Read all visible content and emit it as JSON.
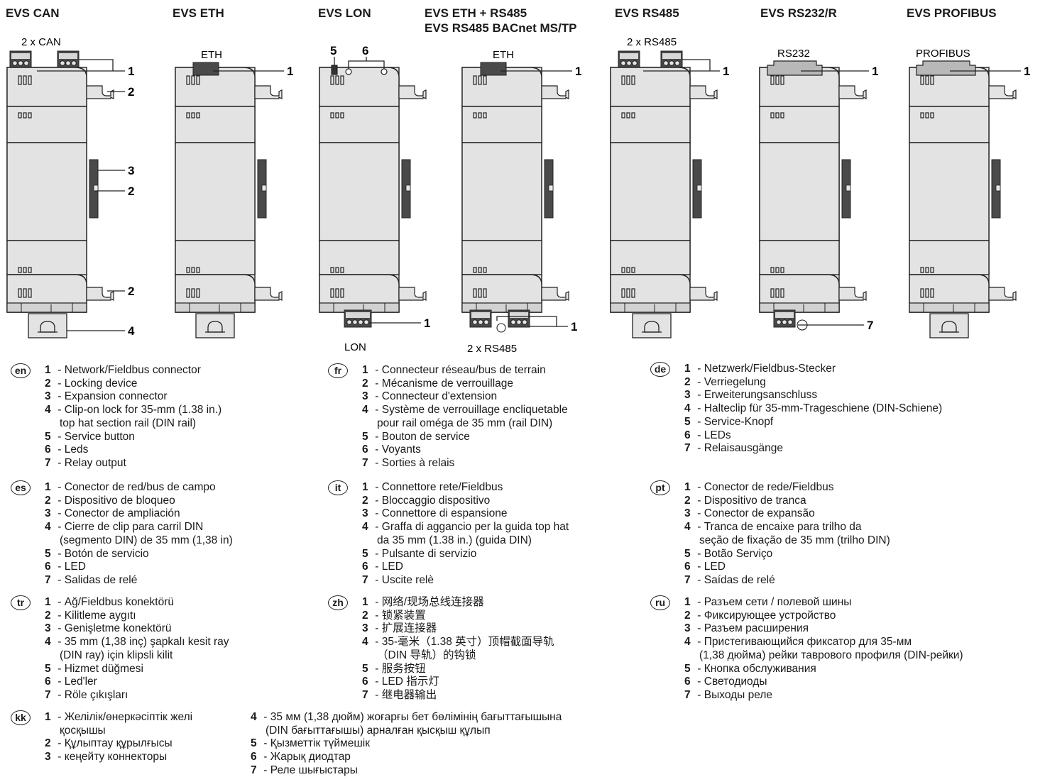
{
  "modules": [
    {
      "title": "EVS CAN",
      "port_label": "2 x CAN",
      "bottom_label": ""
    },
    {
      "title": "EVS ETH",
      "port_label": "ETH",
      "bottom_label": ""
    },
    {
      "title": "EVS LON",
      "port_label": "",
      "bottom_label": "LON"
    },
    {
      "title": "EVS ETH + RS485",
      "title2": "EVS RS485 BACnet MS/TP",
      "port_label": "ETH",
      "bottom_label": "2 x RS485"
    },
    {
      "title": "EVS RS485",
      "port_label": "2 x RS485",
      "bottom_label": ""
    },
    {
      "title": "EVS RS232/R",
      "port_label": "RS232",
      "bottom_label": ""
    },
    {
      "title": "EVS PROFIBUS",
      "port_label": "PROFIBUS",
      "bottom_label": ""
    }
  ],
  "callouts": {
    "can": [
      "1",
      "2",
      "3",
      "2",
      "2",
      "4"
    ],
    "eth": [
      "1"
    ],
    "lon": [
      "5",
      "6",
      "1"
    ],
    "ethrs485": [
      "1",
      "1"
    ],
    "rs485": [
      "1"
    ],
    "rs232": [
      "1",
      "7"
    ],
    "profibus": [
      "1"
    ]
  },
  "legends": {
    "en": {
      "lang": "en",
      "items": [
        {
          "n": "1",
          "t": "Network/Fieldbus connector"
        },
        {
          "n": "2",
          "t": "Locking device"
        },
        {
          "n": "3",
          "t": "Expansion connector"
        },
        {
          "n": "4",
          "t": "Clip-on lock for 35-mm (1.38 in.)",
          "t2": "top hat section rail (DIN rail)"
        },
        {
          "n": "5",
          "t": "Service button"
        },
        {
          "n": "6",
          "t": "Leds"
        },
        {
          "n": "7",
          "t": "Relay output"
        }
      ]
    },
    "fr": {
      "lang": "fr",
      "items": [
        {
          "n": "1",
          "t": "Connecteur réseau/bus de terrain"
        },
        {
          "n": "2",
          "t": "Mécanisme de verrouillage"
        },
        {
          "n": "3",
          "t": "Connecteur d'extension"
        },
        {
          "n": "4",
          "t": "Système de verrouillage encliquetable",
          "t2": "pour rail oméga de 35 mm (rail DIN)"
        },
        {
          "n": "5",
          "t": "Bouton de service"
        },
        {
          "n": "6",
          "t": "Voyants"
        },
        {
          "n": "7",
          "t": "Sorties à relais"
        }
      ]
    },
    "de": {
      "lang": "de",
      "items": [
        {
          "n": "1",
          "t": "Netzwerk/Fieldbus-Stecker"
        },
        {
          "n": "2",
          "t": "Verriegelung"
        },
        {
          "n": "3",
          "t": "Erweiterungsanschluss"
        },
        {
          "n": "4",
          "t": "Halteclip für 35-mm-Trageschiene (DIN-Schiene)"
        },
        {
          "n": "5",
          "t": "Service-Knopf"
        },
        {
          "n": "6",
          "t": "LEDs"
        },
        {
          "n": "7",
          "t": "Relaisausgänge"
        }
      ]
    },
    "es": {
      "lang": "es",
      "items": [
        {
          "n": "1",
          "t": "Conector de red/bus de campo"
        },
        {
          "n": "2",
          "t": "Dispositivo de bloqueo"
        },
        {
          "n": "3",
          "t": "Conector de ampliación"
        },
        {
          "n": "4",
          "t": "Cierre de clip para carril DIN",
          "t2": "(segmento DIN) de 35 mm (1,38 in)"
        },
        {
          "n": "5",
          "t": "Botón de servicio"
        },
        {
          "n": "6",
          "t": "LED"
        },
        {
          "n": "7",
          "t": "Salidas de relé"
        }
      ]
    },
    "it": {
      "lang": "it",
      "items": [
        {
          "n": "1",
          "t": "Connettore rete/Fieldbus"
        },
        {
          "n": "2",
          "t": "Bloccaggio dispositivo"
        },
        {
          "n": "3",
          "t": "Connettore di espansione"
        },
        {
          "n": "4",
          "t": "Graffa di aggancio per la guida top hat",
          "t2": "da 35 mm (1.38 in.) (guida DIN)"
        },
        {
          "n": "5",
          "t": "Pulsante di servizio"
        },
        {
          "n": "6",
          "t": "LED"
        },
        {
          "n": "7",
          "t": "Uscite relè"
        }
      ]
    },
    "pt": {
      "lang": "pt",
      "items": [
        {
          "n": "1",
          "t": "Conector de rede/Fieldbus"
        },
        {
          "n": "2",
          "t": "Dispositivo de tranca"
        },
        {
          "n": "3",
          "t": "Conector de expansão"
        },
        {
          "n": "4",
          "t": "Tranca de encaixe para trilho da",
          "t2": "seção de fixação de 35 mm (trilho DIN)"
        },
        {
          "n": "5",
          "t": "Botão Serviço"
        },
        {
          "n": "6",
          "t": "LED"
        },
        {
          "n": "7",
          "t": "Saídas de relé"
        }
      ]
    },
    "tr": {
      "lang": "tr",
      "items": [
        {
          "n": "1",
          "t": "Ağ/Fieldbus konektörü"
        },
        {
          "n": "2",
          "t": "Kilitleme aygıtı"
        },
        {
          "n": "3",
          "t": "Genişletme konektörü"
        },
        {
          "n": "4",
          "t": "35 mm (1,38 inç) şapkalı kesit ray",
          "t2": "(DIN ray) için klipsli kilit"
        },
        {
          "n": "5",
          "t": "Hizmet düğmesi"
        },
        {
          "n": "6",
          "t": "Led'ler"
        },
        {
          "n": "7",
          "t": "Röle çıkışları"
        }
      ]
    },
    "zh": {
      "lang": "zh",
      "items": [
        {
          "n": "1",
          "t": "网络/现场总线连接器"
        },
        {
          "n": "2",
          "t": "锁紧装置"
        },
        {
          "n": "3",
          "t": "扩展连接器"
        },
        {
          "n": "4",
          "t": "35-毫米（1.38 英寸）顶帽截面导轨",
          "t2": "（DIN 导轨）的钩锁"
        },
        {
          "n": "5",
          "t": "服务按钮"
        },
        {
          "n": "6",
          "t": "LED 指示灯"
        },
        {
          "n": "7",
          "t": "继电器输出"
        }
      ]
    },
    "ru": {
      "lang": "ru",
      "items": [
        {
          "n": "1",
          "t": "Разъем сети / полевой шины"
        },
        {
          "n": "2",
          "t": "Фиксирующее устройство"
        },
        {
          "n": "3",
          "t": "Разъем расширения"
        },
        {
          "n": "4",
          "t": "Пристегивающийся фиксатор для 35-мм",
          "t2": "(1,38 дюйма) рейки таврового профиля (DIN-рейки)"
        },
        {
          "n": "5",
          "t": "Кнопка обслуживания"
        },
        {
          "n": "6",
          "t": "Светодиоды"
        },
        {
          "n": "7",
          "t": "Выходы реле"
        }
      ]
    },
    "kk": {
      "lang": "kk",
      "items": [
        {
          "n": "1",
          "t": "Желілік/өнеркәсіптік желі",
          "t2": "қосқышы"
        },
        {
          "n": "2",
          "t": "Құлыптау құрылғысы"
        },
        {
          "n": "3",
          "t": "кеңейту коннекторы"
        },
        {
          "n": "4",
          "t": "35 мм (1,38 дюйм) жоғарғы бет бөлімінің бағыттағышына",
          "t2": "(DIN бағыттағышы) арналған қысқыш құлып"
        },
        {
          "n": "5",
          "t": "Қызметтік түймешік"
        },
        {
          "n": "6",
          "t": "Жарық диодтар"
        },
        {
          "n": "7",
          "t": "Реле шығыстары"
        }
      ]
    }
  }
}
